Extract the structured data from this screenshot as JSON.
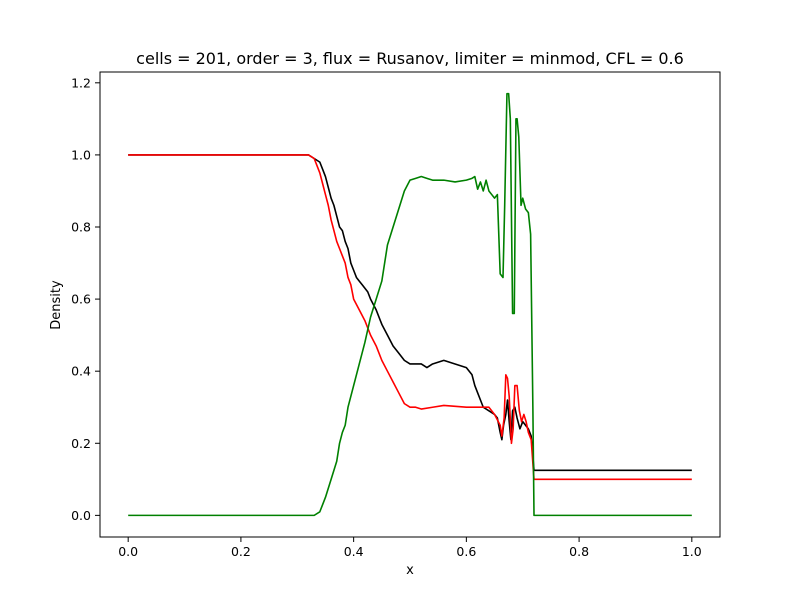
{
  "chart_data": {
    "type": "line",
    "title": "cells = 201, order = 3, flux = Rusanov, limiter = minmod, CFL = 0.6",
    "xlabel": "x",
    "ylabel": "Density",
    "xlim": [
      -0.05,
      1.05
    ],
    "ylim": [
      -0.06,
      1.23
    ],
    "xticks": [
      0.0,
      0.2,
      0.4,
      0.6,
      0.8,
      1.0
    ],
    "xtick_labels": [
      "0.0",
      "0.2",
      "0.4",
      "0.6",
      "0.8",
      "1.0"
    ],
    "yticks": [
      0.0,
      0.2,
      0.4,
      0.6,
      0.8,
      1.0,
      1.2
    ],
    "ytick_labels": [
      "0.0",
      "0.2",
      "0.4",
      "0.6",
      "0.8",
      "1.0",
      "1.2"
    ],
    "grid": false,
    "series": [
      {
        "color": "#000000",
        "points": [
          [
            0.0,
            1.0
          ],
          [
            0.32,
            1.0
          ],
          [
            0.33,
            0.99
          ],
          [
            0.34,
            0.98
          ],
          [
            0.345,
            0.96
          ],
          [
            0.35,
            0.94
          ],
          [
            0.355,
            0.91
          ],
          [
            0.36,
            0.88
          ],
          [
            0.365,
            0.86
          ],
          [
            0.37,
            0.83
          ],
          [
            0.375,
            0.8
          ],
          [
            0.38,
            0.79
          ],
          [
            0.385,
            0.76
          ],
          [
            0.39,
            0.74
          ],
          [
            0.395,
            0.7
          ],
          [
            0.4,
            0.68
          ],
          [
            0.405,
            0.66
          ],
          [
            0.41,
            0.65
          ],
          [
            0.415,
            0.64
          ],
          [
            0.42,
            0.63
          ],
          [
            0.425,
            0.62
          ],
          [
            0.43,
            0.6
          ],
          [
            0.44,
            0.57
          ],
          [
            0.45,
            0.53
          ],
          [
            0.46,
            0.5
          ],
          [
            0.47,
            0.47
          ],
          [
            0.48,
            0.45
          ],
          [
            0.49,
            0.43
          ],
          [
            0.5,
            0.42
          ],
          [
            0.52,
            0.42
          ],
          [
            0.53,
            0.41
          ],
          [
            0.54,
            0.42
          ],
          [
            0.56,
            0.43
          ],
          [
            0.58,
            0.42
          ],
          [
            0.6,
            0.41
          ],
          [
            0.61,
            0.39
          ],
          [
            0.615,
            0.36
          ],
          [
            0.62,
            0.34
          ],
          [
            0.625,
            0.32
          ],
          [
            0.63,
            0.3
          ],
          [
            0.64,
            0.29
          ],
          [
            0.65,
            0.28
          ],
          [
            0.655,
            0.27
          ],
          [
            0.66,
            0.23
          ],
          [
            0.663,
            0.21
          ],
          [
            0.666,
            0.25
          ],
          [
            0.67,
            0.28
          ],
          [
            0.673,
            0.32
          ],
          [
            0.676,
            0.26
          ],
          [
            0.679,
            0.21
          ],
          [
            0.682,
            0.29
          ],
          [
            0.686,
            0.3
          ],
          [
            0.69,
            0.27
          ],
          [
            0.695,
            0.24
          ],
          [
            0.7,
            0.26
          ],
          [
            0.705,
            0.25
          ],
          [
            0.71,
            0.24
          ],
          [
            0.715,
            0.22
          ],
          [
            0.72,
            0.125
          ],
          [
            1.0,
            0.125
          ]
        ]
      },
      {
        "color": "#ff0000",
        "points": [
          [
            0.0,
            1.0
          ],
          [
            0.32,
            1.0
          ],
          [
            0.33,
            0.99
          ],
          [
            0.335,
            0.97
          ],
          [
            0.34,
            0.95
          ],
          [
            0.345,
            0.92
          ],
          [
            0.35,
            0.89
          ],
          [
            0.355,
            0.86
          ],
          [
            0.36,
            0.82
          ],
          [
            0.365,
            0.79
          ],
          [
            0.37,
            0.76
          ],
          [
            0.375,
            0.74
          ],
          [
            0.38,
            0.72
          ],
          [
            0.385,
            0.7
          ],
          [
            0.39,
            0.66
          ],
          [
            0.395,
            0.64
          ],
          [
            0.4,
            0.6
          ],
          [
            0.41,
            0.57
          ],
          [
            0.42,
            0.54
          ],
          [
            0.43,
            0.5
          ],
          [
            0.44,
            0.47
          ],
          [
            0.45,
            0.43
          ],
          [
            0.46,
            0.4
          ],
          [
            0.47,
            0.37
          ],
          [
            0.48,
            0.34
          ],
          [
            0.49,
            0.31
          ],
          [
            0.5,
            0.3
          ],
          [
            0.51,
            0.3
          ],
          [
            0.52,
            0.295
          ],
          [
            0.54,
            0.3
          ],
          [
            0.56,
            0.305
          ],
          [
            0.6,
            0.3
          ],
          [
            0.62,
            0.3
          ],
          [
            0.64,
            0.3
          ],
          [
            0.65,
            0.28
          ],
          [
            0.66,
            0.25
          ],
          [
            0.663,
            0.22
          ],
          [
            0.667,
            0.27
          ],
          [
            0.67,
            0.39
          ],
          [
            0.673,
            0.38
          ],
          [
            0.676,
            0.33
          ],
          [
            0.68,
            0.2
          ],
          [
            0.683,
            0.24
          ],
          [
            0.686,
            0.36
          ],
          [
            0.69,
            0.36
          ],
          [
            0.694,
            0.29
          ],
          [
            0.698,
            0.26
          ],
          [
            0.702,
            0.28
          ],
          [
            0.706,
            0.26
          ],
          [
            0.71,
            0.23
          ],
          [
            0.715,
            0.21
          ],
          [
            0.72,
            0.1
          ],
          [
            1.0,
            0.1
          ]
        ]
      },
      {
        "color": "#008000",
        "points": [
          [
            0.0,
            0.0
          ],
          [
            0.33,
            0.0
          ],
          [
            0.34,
            0.01
          ],
          [
            0.345,
            0.03
          ],
          [
            0.35,
            0.05
          ],
          [
            0.36,
            0.1
          ],
          [
            0.37,
            0.15
          ],
          [
            0.375,
            0.2
          ],
          [
            0.38,
            0.23
          ],
          [
            0.385,
            0.25
          ],
          [
            0.39,
            0.3
          ],
          [
            0.4,
            0.36
          ],
          [
            0.41,
            0.42
          ],
          [
            0.42,
            0.48
          ],
          [
            0.43,
            0.55
          ],
          [
            0.44,
            0.6
          ],
          [
            0.45,
            0.65
          ],
          [
            0.455,
            0.7
          ],
          [
            0.46,
            0.75
          ],
          [
            0.47,
            0.8
          ],
          [
            0.48,
            0.85
          ],
          [
            0.49,
            0.9
          ],
          [
            0.5,
            0.93
          ],
          [
            0.51,
            0.935
          ],
          [
            0.52,
            0.94
          ],
          [
            0.53,
            0.935
          ],
          [
            0.54,
            0.93
          ],
          [
            0.56,
            0.93
          ],
          [
            0.58,
            0.925
          ],
          [
            0.6,
            0.93
          ],
          [
            0.61,
            0.935
          ],
          [
            0.615,
            0.94
          ],
          [
            0.62,
            0.905
          ],
          [
            0.625,
            0.925
          ],
          [
            0.63,
            0.9
          ],
          [
            0.635,
            0.93
          ],
          [
            0.64,
            0.9
          ],
          [
            0.645,
            0.89
          ],
          [
            0.65,
            0.88
          ],
          [
            0.655,
            0.89
          ],
          [
            0.66,
            0.67
          ],
          [
            0.665,
            0.66
          ],
          [
            0.668,
            0.86
          ],
          [
            0.672,
            1.17
          ],
          [
            0.675,
            1.17
          ],
          [
            0.678,
            1.1
          ],
          [
            0.682,
            0.56
          ],
          [
            0.685,
            0.56
          ],
          [
            0.688,
            1.1
          ],
          [
            0.69,
            1.1
          ],
          [
            0.693,
            1.05
          ],
          [
            0.697,
            0.86
          ],
          [
            0.7,
            0.88
          ],
          [
            0.705,
            0.85
          ],
          [
            0.71,
            0.84
          ],
          [
            0.714,
            0.78
          ],
          [
            0.718,
            0.3
          ],
          [
            0.72,
            0.0
          ],
          [
            1.0,
            0.0
          ]
        ]
      }
    ]
  }
}
